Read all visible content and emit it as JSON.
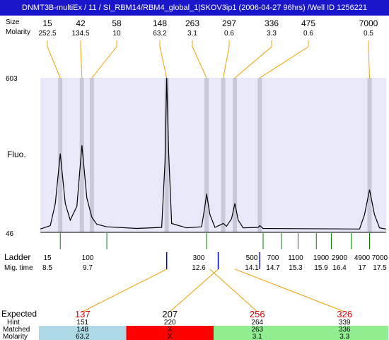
{
  "window": {
    "title": "DNMT3B-multiEx / 11 / SI_RBM14/RBM4_global_1|SKOV3ip1 (2006-04-27 96hrs) /Well ID 1256221"
  },
  "colors": {
    "title_bar": "#1a16cc",
    "plot_bg": "#e8e8f8",
    "peak_band": "#c8c8d8",
    "connector": "#f0a000",
    "ladder_tick": "#008000",
    "marker_tick": "#0000cc",
    "expected": "#e00000",
    "matched_blue": "#add8e6",
    "matched_red": "#ff0000",
    "matched_green": "#90ee90"
  },
  "labels": {
    "size_row": "Size",
    "molarity_row": "Molarity",
    "fluo_axis": "Fluo.",
    "ladder_row": "Ladder",
    "migtime_row": "Mig. time",
    "expected_row": "Expected",
    "hint_row": "Hint",
    "matched_row": "Matched",
    "molarity_bottom_row": "Molarity"
  },
  "chart_data": {
    "type": "line",
    "ylabel": "Fluo.",
    "ylim": [
      46,
      603
    ],
    "ytick_labels": [
      "603",
      "46"
    ],
    "xlim": [
      7.6,
      18.0
    ],
    "peaks": [
      {
        "size": "15",
        "molarity": "252.5",
        "time": 8.2
      },
      {
        "size": "42",
        "molarity": "134.5",
        "time": 8.85
      },
      {
        "size": "58",
        "molarity": "10",
        "time": 9.15
      },
      {
        "size": "148",
        "molarity": "63.2",
        "time": 11.4
      },
      {
        "size": "263",
        "molarity": "3.1",
        "time": 12.6
      },
      {
        "size": "297",
        "molarity": "0.6",
        "time": 13.1
      },
      {
        "size": "336",
        "molarity": "3.3",
        "time": 13.45
      },
      {
        "size": "475",
        "molarity": "0.6",
        "time": 14.2
      },
      {
        "size": "7000",
        "molarity": "0.5",
        "time": 17.5
      }
    ],
    "trace": [
      [
        7.6,
        58
      ],
      [
        7.9,
        70
      ],
      [
        8.05,
        150
      ],
      [
        8.2,
        330
      ],
      [
        8.35,
        150
      ],
      [
        8.5,
        90
      ],
      [
        8.7,
        140
      ],
      [
        8.85,
        360
      ],
      [
        9.0,
        170
      ],
      [
        9.15,
        100
      ],
      [
        9.3,
        75
      ],
      [
        9.6,
        66
      ],
      [
        10.5,
        60
      ],
      [
        11.25,
        64
      ],
      [
        11.35,
        300
      ],
      [
        11.4,
        603
      ],
      [
        11.46,
        330
      ],
      [
        11.55,
        78
      ],
      [
        12.0,
        62
      ],
      [
        12.45,
        66
      ],
      [
        12.55,
        140
      ],
      [
        12.6,
        185
      ],
      [
        12.7,
        110
      ],
      [
        12.85,
        64
      ],
      [
        13.0,
        72
      ],
      [
        13.1,
        78
      ],
      [
        13.2,
        68
      ],
      [
        13.35,
        95
      ],
      [
        13.45,
        150
      ],
      [
        13.55,
        90
      ],
      [
        13.7,
        62
      ],
      [
        14.15,
        64
      ],
      [
        14.2,
        70
      ],
      [
        14.3,
        60
      ],
      [
        17.2,
        58
      ],
      [
        17.35,
        110
      ],
      [
        17.5,
        200
      ],
      [
        17.65,
        110
      ],
      [
        17.8,
        62
      ],
      [
        18.0,
        58
      ]
    ],
    "ladder": [
      {
        "size": "15",
        "time": "8.5",
        "pos": 8.2
      },
      {
        "size": "100",
        "time": "9.7",
        "pos": 9.6
      },
      {
        "size": "300",
        "time": "12.6",
        "pos": 12.6
      },
      {
        "size": "500",
        "time": "14.1",
        "pos": 14.3
      },
      {
        "size": "700",
        "time": "14.7",
        "pos": 14.85
      },
      {
        "size": "1100",
        "time": "15.3",
        "pos": 15.35
      },
      {
        "size": "1900",
        "time": "15.9",
        "pos": 15.9
      },
      {
        "size": "2900",
        "time": "16.4",
        "pos": 16.35
      },
      {
        "size": "4900",
        "time": "17",
        "pos": 16.95
      },
      {
        "size": "7000",
        "time": "17.5",
        "pos": 17.5
      }
    ],
    "markers": [
      11.4,
      12.95,
      14.2
    ],
    "expected": [
      {
        "expected": "137",
        "hint": "151",
        "matched": "148",
        "molarity": "63.2",
        "status": "blue",
        "marker_pos": 11.4
      },
      {
        "expected": "207",
        "hint": "220",
        "matched": "X",
        "molarity": "X",
        "status": "red",
        "marker_pos": 12.95
      },
      {
        "expected": "256",
        "hint": "264",
        "matched": "263",
        "molarity": "3.1",
        "status": "green",
        "marker_pos": 12.7
      },
      {
        "expected": "326",
        "hint": "339",
        "matched": "336",
        "molarity": "3.3",
        "status": "green",
        "marker_pos": 13.45
      }
    ]
  }
}
